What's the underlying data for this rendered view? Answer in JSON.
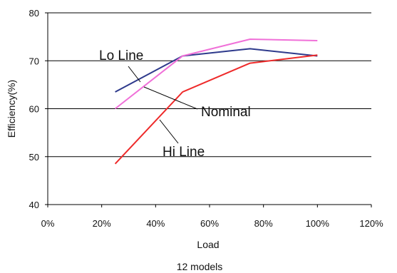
{
  "chart_data": {
    "type": "line",
    "caption": "12 models",
    "xlabel": "Load",
    "ylabel": "Efficiency(%)",
    "x_tick_labels": [
      "0%",
      "20%",
      "40%",
      "60%",
      "80%",
      "100%",
      "120%"
    ],
    "y_tick_labels": [
      "40",
      "50",
      "60",
      "70",
      "80"
    ],
    "xlim": [
      0,
      120
    ],
    "ylim": [
      40,
      80
    ],
    "x_ticks": [
      0,
      20,
      40,
      60,
      80,
      100,
      120
    ],
    "y_ticks": [
      40,
      50,
      60,
      70,
      80
    ],
    "grid": "horizontal",
    "series": [
      {
        "name": "Lo Line",
        "color": "#2e3a8c",
        "x": [
          25,
          50,
          75,
          100
        ],
        "y": [
          63.5,
          71.0,
          72.5,
          71.0
        ]
      },
      {
        "name": "Nominal",
        "color": "#f070d8",
        "x": [
          25,
          50,
          75,
          100
        ],
        "y": [
          60.0,
          71.0,
          74.5,
          74.2
        ]
      },
      {
        "name": "Hi Line",
        "color": "#ee2a2a",
        "x": [
          25,
          50,
          75,
          100
        ],
        "y": [
          48.5,
          63.5,
          69.5,
          71.2
        ]
      }
    ],
    "annotations": [
      {
        "text": "Lo Line",
        "series": "Lo Line"
      },
      {
        "text": "Nominal",
        "series": "Nominal"
      },
      {
        "text": "Hi Line",
        "series": "Hi Line"
      }
    ]
  }
}
